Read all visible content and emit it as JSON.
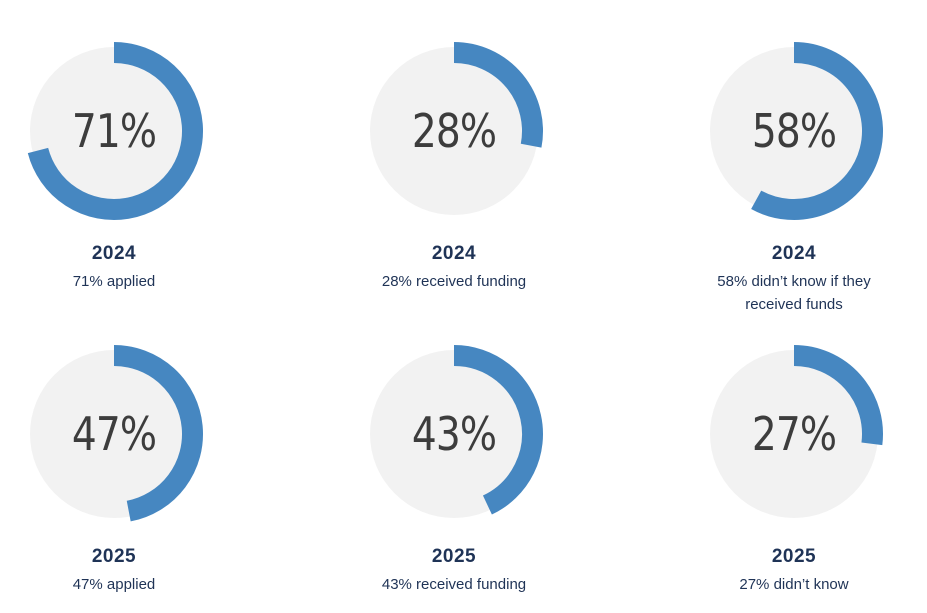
{
  "page": {
    "background_color": "#ffffff"
  },
  "chart_data": {
    "type": "pie",
    "subtype": "donut-gauge-grid",
    "layout": "2 rows x 3 columns",
    "start_position": "top",
    "direction": "clockwise",
    "colors": {
      "arc": "#4687c1",
      "disc": "#f2f2f2",
      "value_text": "#3d3d3d",
      "label_text": "#1f3356"
    },
    "donuts": [
      {
        "value": 71,
        "value_label": "71%",
        "year": "2024",
        "caption": "71% applied"
      },
      {
        "value": 28,
        "value_label": "28%",
        "year": "2024",
        "caption": "28% received funding"
      },
      {
        "value": 58,
        "value_label": "58%",
        "year": "2024",
        "caption": "58% didn’t know if they received funds"
      },
      {
        "value": 47,
        "value_label": "47%",
        "year": "2025",
        "caption": "47% applied"
      },
      {
        "value": 43,
        "value_label": "43%",
        "year": "2025",
        "caption": "43% received funding"
      },
      {
        "value": 27,
        "value_label": "27%",
        "year": "2025",
        "caption": "27% didn’t know"
      }
    ]
  }
}
